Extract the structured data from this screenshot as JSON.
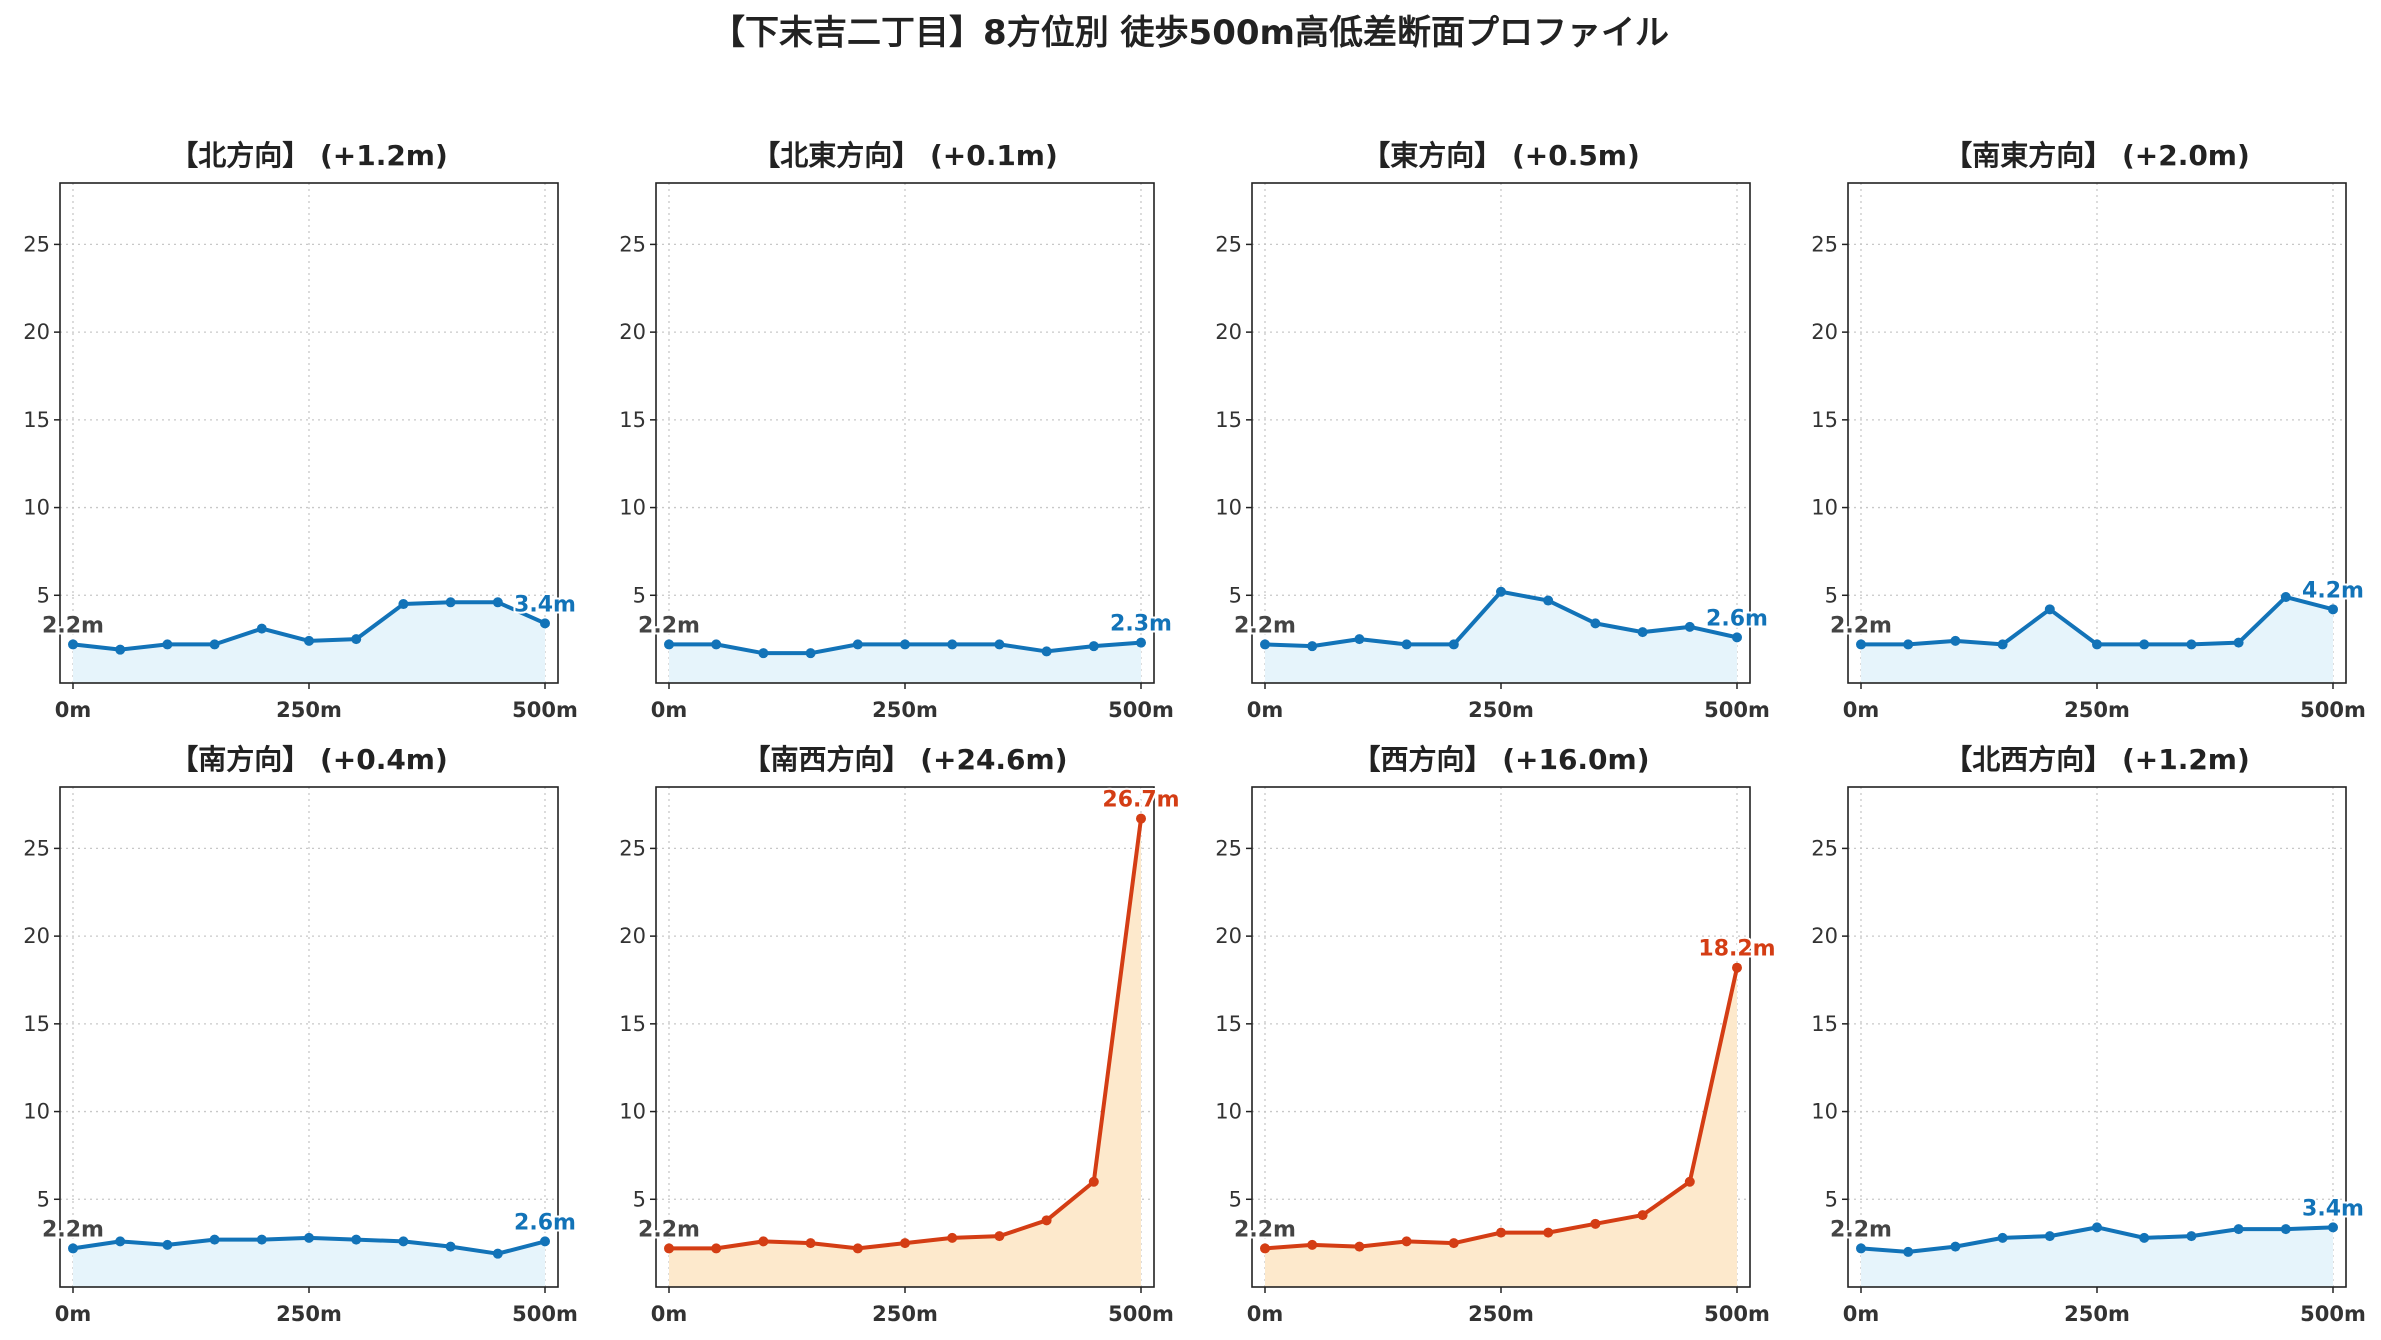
{
  "suptitle": "【下末吉二丁目】8方位別 徒歩500m高低差断面プロファイル",
  "colors": {
    "normal_line": "#1273b8",
    "normal_fill": "#e6f4fb",
    "steep_line": "#d43d14",
    "steep_fill": "#fde9cc",
    "start_label": "#444444",
    "grid": "#c8c8c8"
  },
  "chart_data": [
    {
      "type": "area",
      "title": "【北方向】 (+1.2m)",
      "x": [
        0,
        50,
        100,
        150,
        200,
        250,
        300,
        350,
        400,
        450,
        500
      ],
      "y": [
        2.2,
        1.9,
        2.2,
        2.2,
        3.1,
        2.4,
        2.5,
        4.5,
        4.6,
        4.6,
        3.4
      ],
      "xticks": [
        "0m",
        "250m",
        "500m"
      ],
      "yticks": [
        5,
        10,
        15,
        20,
        25
      ],
      "ylim": [
        0,
        28.5
      ],
      "start_label": "2.2m",
      "end_label": "3.4m",
      "steep": false,
      "grid": true
    },
    {
      "type": "area",
      "title": "【北東方向】 (+0.1m)",
      "x": [
        0,
        50,
        100,
        150,
        200,
        250,
        300,
        350,
        400,
        450,
        500
      ],
      "y": [
        2.2,
        2.2,
        1.7,
        1.7,
        2.2,
        2.2,
        2.2,
        2.2,
        1.8,
        2.1,
        2.3
      ],
      "xticks": [
        "0m",
        "250m",
        "500m"
      ],
      "yticks": [
        5,
        10,
        15,
        20,
        25
      ],
      "ylim": [
        0,
        28.5
      ],
      "start_label": "2.2m",
      "end_label": "2.3m",
      "steep": false,
      "grid": true
    },
    {
      "type": "area",
      "title": "【東方向】 (+0.5m)",
      "x": [
        0,
        50,
        100,
        150,
        200,
        250,
        300,
        350,
        400,
        450,
        500
      ],
      "y": [
        2.2,
        2.1,
        2.5,
        2.2,
        2.2,
        5.2,
        4.7,
        3.4,
        2.9,
        3.2,
        2.6
      ],
      "xticks": [
        "0m",
        "250m",
        "500m"
      ],
      "yticks": [
        5,
        10,
        15,
        20,
        25
      ],
      "ylim": [
        0,
        28.5
      ],
      "start_label": "2.2m",
      "end_label": "2.6m",
      "steep": false,
      "grid": true
    },
    {
      "type": "area",
      "title": "【南東方向】 (+2.0m)",
      "x": [
        0,
        50,
        100,
        150,
        200,
        250,
        300,
        350,
        400,
        450,
        500
      ],
      "y": [
        2.2,
        2.2,
        2.4,
        2.2,
        4.2,
        2.2,
        2.2,
        2.2,
        2.3,
        4.9,
        4.2
      ],
      "xticks": [
        "0m",
        "250m",
        "500m"
      ],
      "yticks": [
        5,
        10,
        15,
        20,
        25
      ],
      "ylim": [
        0,
        28.5
      ],
      "start_label": "2.2m",
      "end_label": "4.2m",
      "steep": false,
      "grid": true
    },
    {
      "type": "area",
      "title": "【南方向】 (+0.4m)",
      "x": [
        0,
        50,
        100,
        150,
        200,
        250,
        300,
        350,
        400,
        450,
        500
      ],
      "y": [
        2.2,
        2.6,
        2.4,
        2.7,
        2.7,
        2.8,
        2.7,
        2.6,
        2.3,
        1.9,
        2.6
      ],
      "xticks": [
        "0m",
        "250m",
        "500m"
      ],
      "yticks": [
        5,
        10,
        15,
        20,
        25
      ],
      "ylim": [
        0,
        28.5
      ],
      "start_label": "2.2m",
      "end_label": "2.6m",
      "steep": false,
      "grid": true
    },
    {
      "type": "area",
      "title": "【南西方向】 (+24.6m)",
      "x": [
        0,
        50,
        100,
        150,
        200,
        250,
        300,
        350,
        400,
        450,
        500
      ],
      "y": [
        2.2,
        2.2,
        2.6,
        2.5,
        2.2,
        2.5,
        2.8,
        2.9,
        3.8,
        6.0,
        26.7
      ],
      "xticks": [
        "0m",
        "250m",
        "500m"
      ],
      "yticks": [
        5,
        10,
        15,
        20,
        25
      ],
      "ylim": [
        0,
        28.5
      ],
      "start_label": "2.2m",
      "end_label": "26.7m",
      "steep": true,
      "grid": true
    },
    {
      "type": "area",
      "title": "【西方向】 (+16.0m)",
      "x": [
        0,
        50,
        100,
        150,
        200,
        250,
        300,
        350,
        400,
        450,
        500
      ],
      "y": [
        2.2,
        2.4,
        2.3,
        2.6,
        2.5,
        3.1,
        3.1,
        3.6,
        4.1,
        6.0,
        18.2
      ],
      "xticks": [
        "0m",
        "250m",
        "500m"
      ],
      "yticks": [
        5,
        10,
        15,
        20,
        25
      ],
      "ylim": [
        0,
        28.5
      ],
      "start_label": "2.2m",
      "end_label": "18.2m",
      "steep": true,
      "grid": true
    },
    {
      "type": "area",
      "title": "【北西方向】 (+1.2m)",
      "x": [
        0,
        50,
        100,
        150,
        200,
        250,
        300,
        350,
        400,
        450,
        500
      ],
      "y": [
        2.2,
        2.0,
        2.3,
        2.8,
        2.9,
        3.4,
        2.8,
        2.9,
        3.3,
        3.3,
        3.4
      ],
      "xticks": [
        "0m",
        "250m",
        "500m"
      ],
      "yticks": [
        5,
        10,
        15,
        20,
        25
      ],
      "ylim": [
        0,
        28.5
      ],
      "start_label": "2.2m",
      "end_label": "3.4m",
      "steep": false,
      "grid": true
    }
  ]
}
